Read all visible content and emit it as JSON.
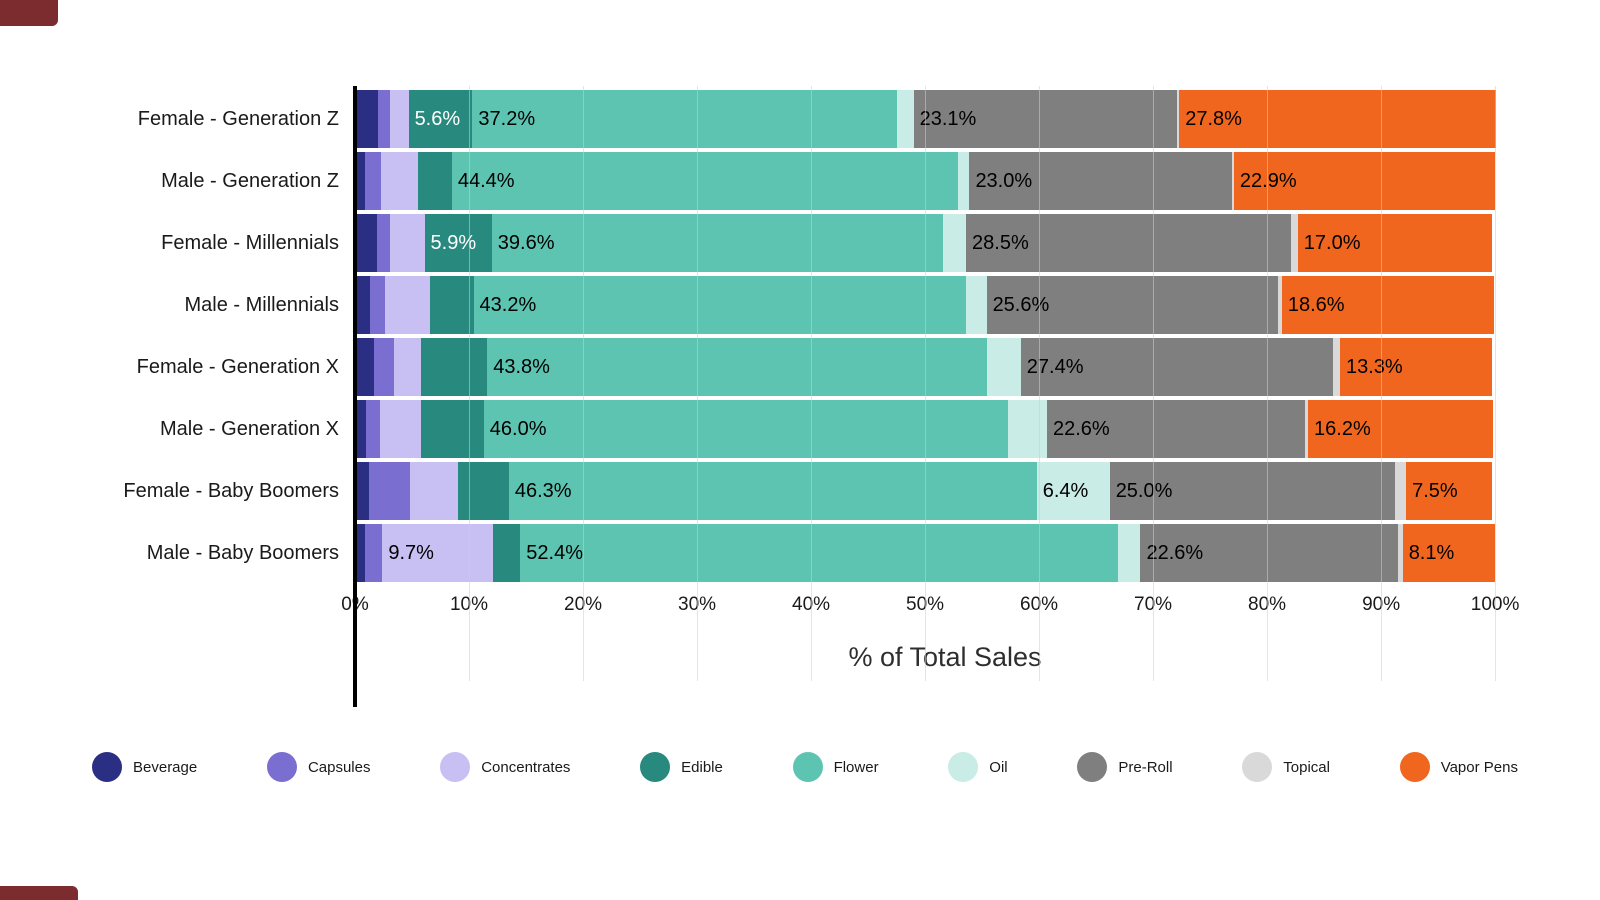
{
  "chart_data": {
    "type": "bar",
    "stacked": true,
    "orientation": "horizontal",
    "title": "",
    "xlabel": "% of Total Sales",
    "ylabel": "",
    "x_max": 103.5,
    "x_ticks": [
      "0%",
      "10%",
      "20%",
      "30%",
      "40%",
      "50%",
      "60%",
      "70%",
      "80%",
      "90%",
      "100%"
    ],
    "grid": true,
    "legend_position": "bottom",
    "categories": [
      "Female - Generation Z",
      "Male - Generation Z",
      "Female - Millennials",
      "Male - Millennials",
      "Female - Generation X",
      "Male - Generation X",
      "Female - Baby Boomers",
      "Male - Baby Boomers"
    ],
    "series": [
      {
        "name": "Beverage",
        "color": "#2b2f84",
        "label_color": "#ffffff",
        "values": [
          2.0,
          0.9,
          1.9,
          1.3,
          1.7,
          1.0,
          1.2,
          0.9
        ],
        "labels": [
          "",
          "",
          "",
          "",
          "",
          "",
          "",
          ""
        ]
      },
      {
        "name": "Capsules",
        "color": "#7a6fd1",
        "label_color": "#ffffff",
        "values": [
          1.1,
          1.4,
          1.2,
          1.3,
          1.7,
          1.2,
          3.6,
          1.5
        ],
        "labels": [
          "",
          "",
          "",
          "",
          "",
          "",
          "",
          ""
        ]
      },
      {
        "name": "Concentrates",
        "color": "#c8c0f2",
        "label_color": "#000000",
        "values": [
          1.6,
          3.2,
          3.0,
          4.0,
          2.4,
          3.6,
          4.2,
          9.7
        ],
        "labels": [
          "",
          "",
          "",
          "",
          "",
          "",
          "",
          "9.7%"
        ]
      },
      {
        "name": "Edible",
        "color": "#28897f",
        "label_color": "#ffffff",
        "values": [
          5.6,
          3.0,
          5.9,
          3.8,
          5.8,
          5.5,
          4.5,
          2.4
        ],
        "labels": [
          "5.6%",
          "",
          "5.9%",
          "",
          "",
          "",
          "",
          ""
        ]
      },
      {
        "name": "Flower",
        "color": "#5ec4b2",
        "label_color": "#000000",
        "values": [
          37.2,
          44.4,
          39.6,
          43.2,
          43.8,
          46.0,
          46.3,
          52.4
        ],
        "labels": [
          "37.2%",
          "44.4%",
          "39.6%",
          "43.2%",
          "43.8%",
          "46.0%",
          "46.3%",
          "52.4%"
        ]
      },
      {
        "name": "Oil",
        "color": "#c9ece6",
        "label_color": "#000000",
        "values": [
          1.5,
          1.0,
          2.0,
          1.8,
          3.0,
          3.4,
          6.4,
          2.0
        ],
        "labels": [
          "",
          "",
          "",
          "",
          "",
          "",
          "6.4%",
          ""
        ]
      },
      {
        "name": "Pre-Roll",
        "color": "#7f7f7f",
        "label_color": "#000000",
        "values": [
          23.1,
          23.0,
          28.5,
          25.6,
          27.4,
          22.6,
          25.0,
          22.6
        ],
        "labels": [
          "23.1%",
          "23.0%",
          "28.5%",
          "25.6%",
          "27.4%",
          "22.6%",
          "25.0%",
          "22.6%"
        ]
      },
      {
        "name": "Topical",
        "color": "#d9d9d9",
        "label_color": "#000000",
        "values": [
          0.2,
          0.2,
          0.6,
          0.3,
          0.6,
          0.3,
          1.0,
          0.4
        ],
        "labels": [
          "",
          "",
          "",
          "",
          "",
          "",
          "",
          ""
        ]
      },
      {
        "name": "Vapor Pens",
        "color": "#f1661e",
        "label_color": "#000000",
        "values": [
          27.8,
          22.9,
          17.0,
          18.6,
          13.3,
          16.2,
          7.5,
          8.1
        ],
        "labels": [
          "27.8%",
          "22.9%",
          "17.0%",
          "18.6%",
          "13.3%",
          "16.2%",
          "7.5%",
          "8.1%"
        ]
      }
    ]
  }
}
